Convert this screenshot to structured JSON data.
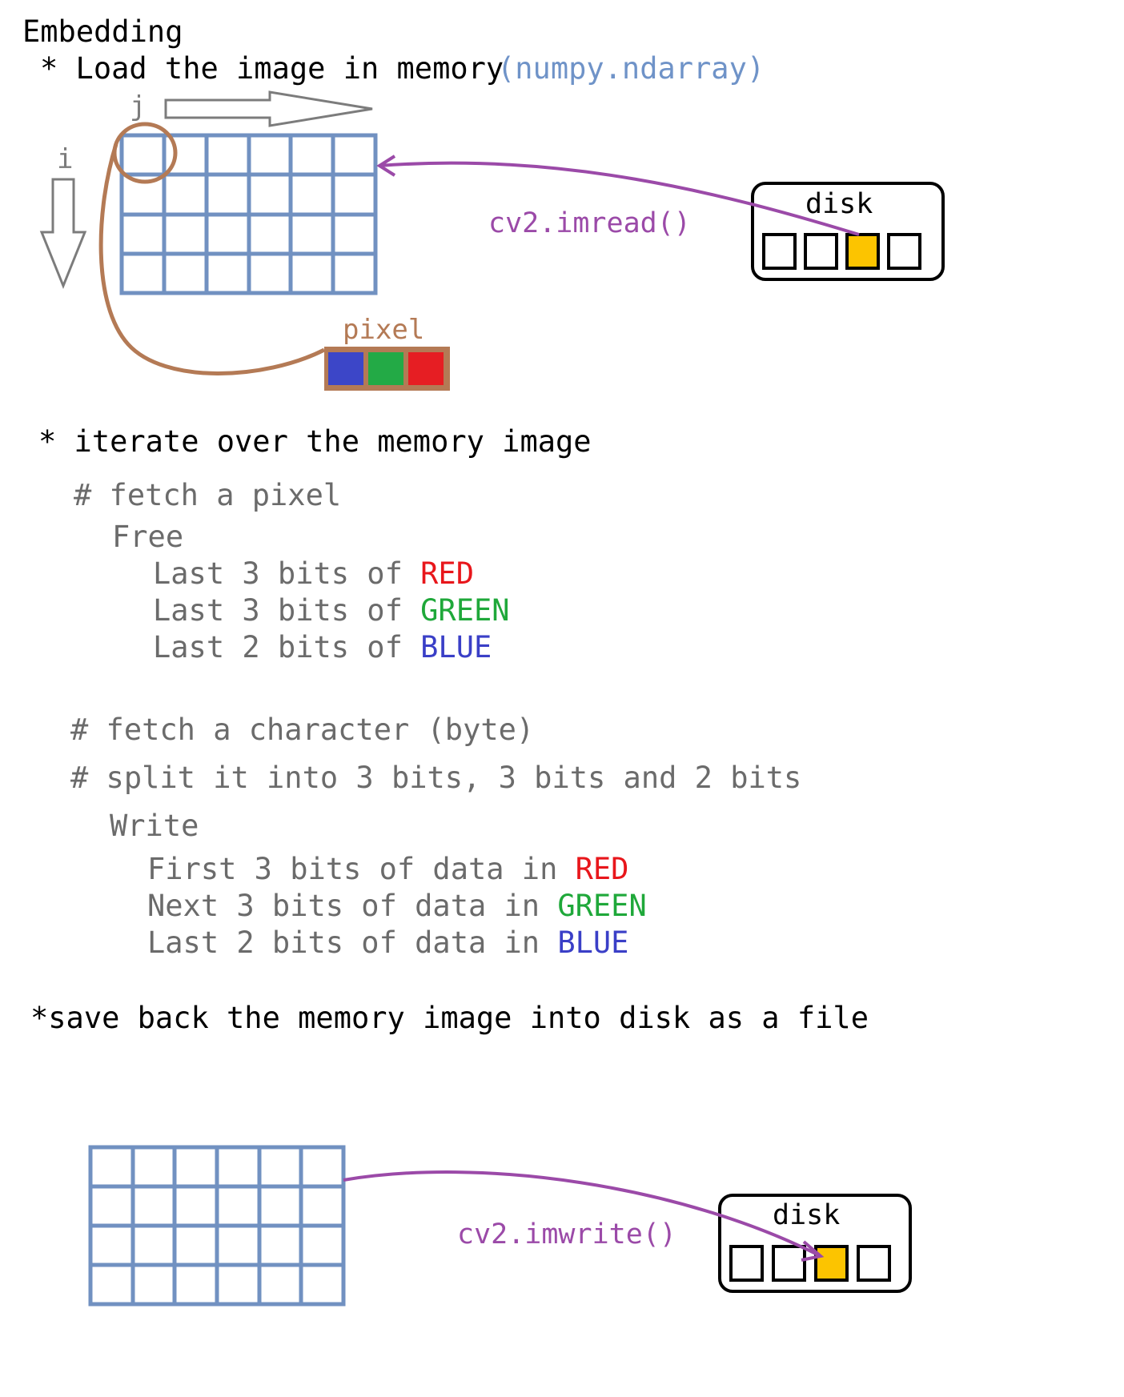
{
  "heading": "Embedding",
  "step1": {
    "bullet": "* Load the image in memory",
    "type_hint": "(numpy.ndarray)"
  },
  "axes": {
    "j": "j",
    "i": "i"
  },
  "pixel": {
    "label": "pixel",
    "channels": [
      "#3c46c8",
      "#23aa46",
      "#e61e23"
    ]
  },
  "read": {
    "func": "cv2.imread()",
    "disk_label": "disk"
  },
  "step2": {
    "bullet": "* iterate over the memory image",
    "fetch_pixel": "# fetch a pixel",
    "free": "Free",
    "free_lines": [
      {
        "prefix": "Last 3 bits of ",
        "color_word": "RED"
      },
      {
        "prefix": "Last 3 bits of ",
        "color_word": "GREEN"
      },
      {
        "prefix": "Last 2 bits of ",
        "color_word": "BLUE"
      }
    ],
    "fetch_char": "# fetch a character (byte)",
    "split": "# split it into 3 bits, 3 bits and 2 bits",
    "write": "Write",
    "write_lines": [
      {
        "prefix": "First 3 bits of data in ",
        "color_word": "RED"
      },
      {
        "prefix": "Next 3 bits of data in ",
        "color_word": "GREEN"
      },
      {
        "prefix": "Last 2 bits of data in ",
        "color_word": "BLUE"
      }
    ]
  },
  "step3": {
    "bullet": "*save back the memory image into disk as a file"
  },
  "write_op": {
    "func": "cv2.imwrite()",
    "disk_label": "disk"
  },
  "colors": {
    "grid": "#7191c1",
    "purple": "#9b4aa8",
    "brown": "#b47a55",
    "red": "#e8161b",
    "green": "#1fa83a",
    "blue": "#3a3fc7",
    "hint": "#6f93c8",
    "slot_fill": "#fcc400"
  }
}
